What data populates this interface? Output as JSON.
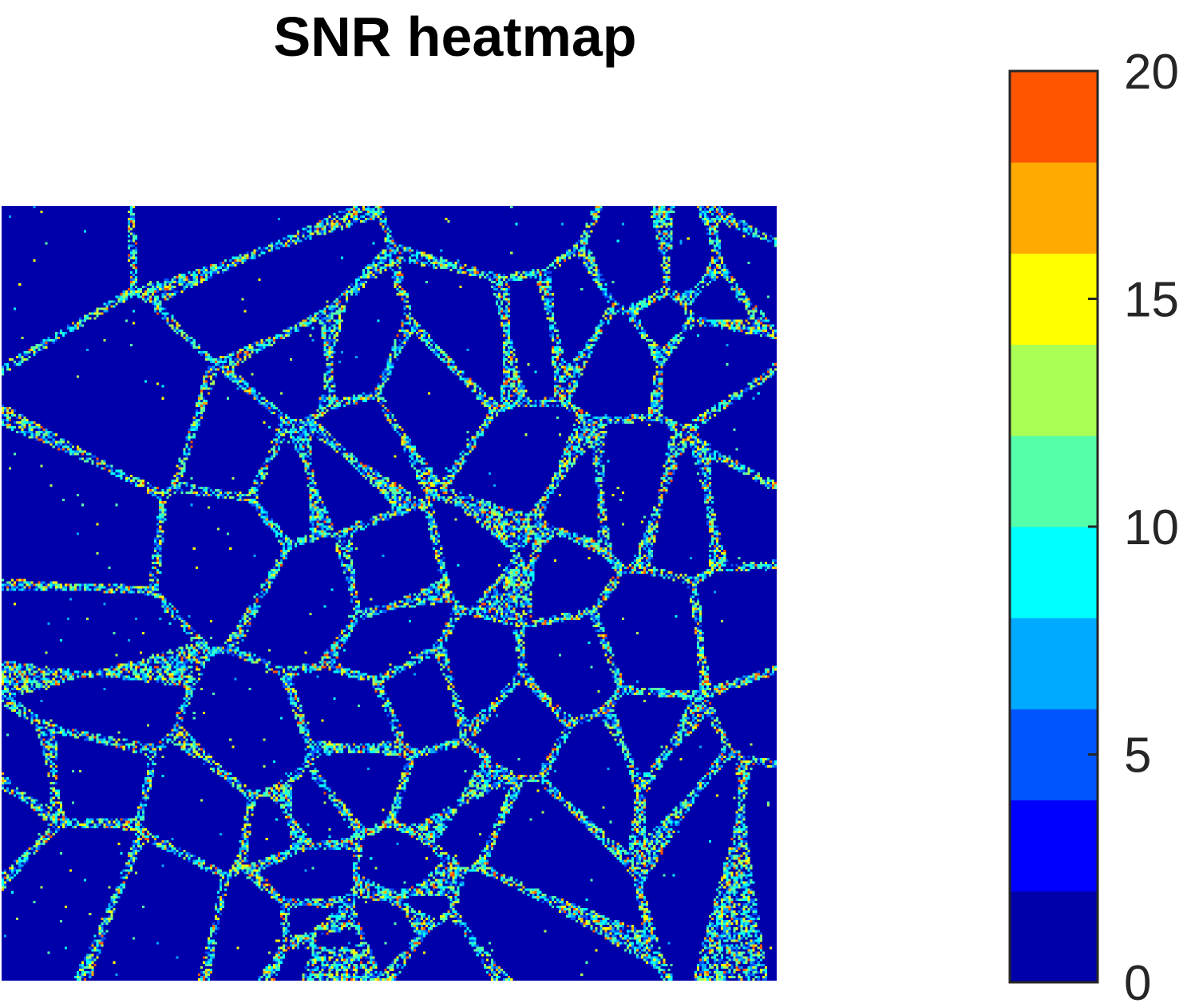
{
  "chart_data": {
    "type": "heatmap",
    "title": "SNR heatmap",
    "xlabel": "",
    "ylabel": "",
    "axes_visible": false,
    "colorbar": {
      "position": "right",
      "range": [
        0,
        20
      ],
      "ticks": [
        0,
        5,
        10,
        15,
        20
      ],
      "tick_labels": [
        "0",
        "5",
        "10",
        "15",
        "20"
      ],
      "levels": 10,
      "colors": [
        "#0000aa",
        "#0000ff",
        "#0055ff",
        "#00aaff",
        "#00ffff",
        "#55ffaa",
        "#aaff55",
        "#ffff00",
        "#ffaa00",
        "#ff5500"
      ]
    },
    "background_value": 0,
    "pattern": "cellular network of filaments with high-SNR speckles on a near-zero background"
  }
}
